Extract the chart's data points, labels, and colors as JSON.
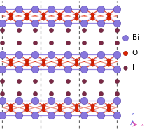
{
  "bg_color": "#ffffff",
  "bi_color": "#8877dd",
  "bi_edge": "#5544aa",
  "o_color": "#dd2200",
  "o_edge": "#991100",
  "i_color": "#7a2845",
  "i_edge": "#4a1122",
  "bond_bi_color": "#8877cc",
  "bond_o_color": "#cc3311",
  "dashed_color": "#666666",
  "legend_labels": [
    "Bi",
    "O",
    "I"
  ],
  "figsize": [
    2.13,
    1.89
  ],
  "dpi": 100,
  "xlim": [
    0,
    10
  ],
  "ylim": [
    0,
    9.5
  ]
}
